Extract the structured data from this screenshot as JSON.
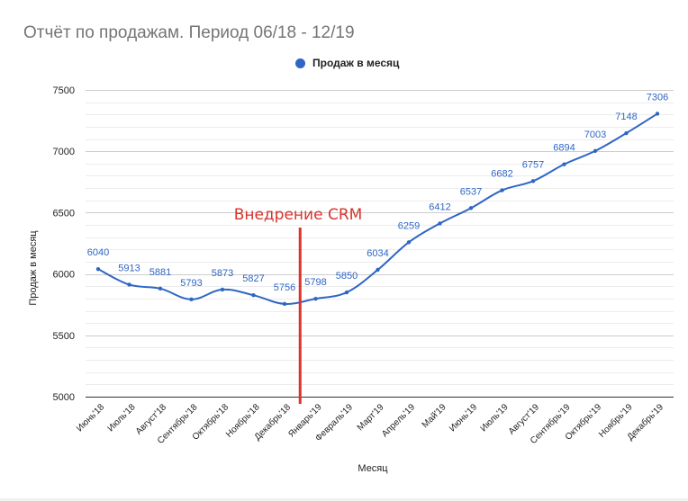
{
  "chart_data": {
    "type": "line",
    "title": "Отчёт по продажам. Период 06/18 - 12/19",
    "xlabel": "Месяц",
    "ylabel": "Продаж в месяц",
    "ylim": [
      5000,
      7500
    ],
    "yticks": [
      5000,
      5500,
      6000,
      6500,
      7000,
      7500
    ],
    "grid": true,
    "legend_position": "top",
    "categories": [
      "Июнь'18",
      "Июль'18",
      "Август'18",
      "Сентябрь'18",
      "Октябрь'18",
      "Ноябрь'18",
      "Декабрь'18",
      "Январь'19",
      "Февраль'19",
      "Март'19",
      "Апрель'19",
      "Май'19",
      "Июнь'19",
      "Июль'19",
      "Август'19",
      "Сентябрь'19",
      "Октябрь'19",
      "Ноябрь'19",
      "Декабрь'19"
    ],
    "series": [
      {
        "name": "Продаж в месяц",
        "color": "#2f66c4",
        "values": [
          6040,
          5913,
          5881,
          5793,
          5873,
          5827,
          5756,
          5798,
          5850,
          6034,
          6259,
          6412,
          6537,
          6682,
          6757,
          6894,
          7003,
          7148,
          7306
        ]
      }
    ],
    "annotations": [
      {
        "text": "Внедрение CRM",
        "color": "#d9342b",
        "type": "vertical-line",
        "x_position": "between Декабрь'18 and Январь'19"
      }
    ]
  }
}
